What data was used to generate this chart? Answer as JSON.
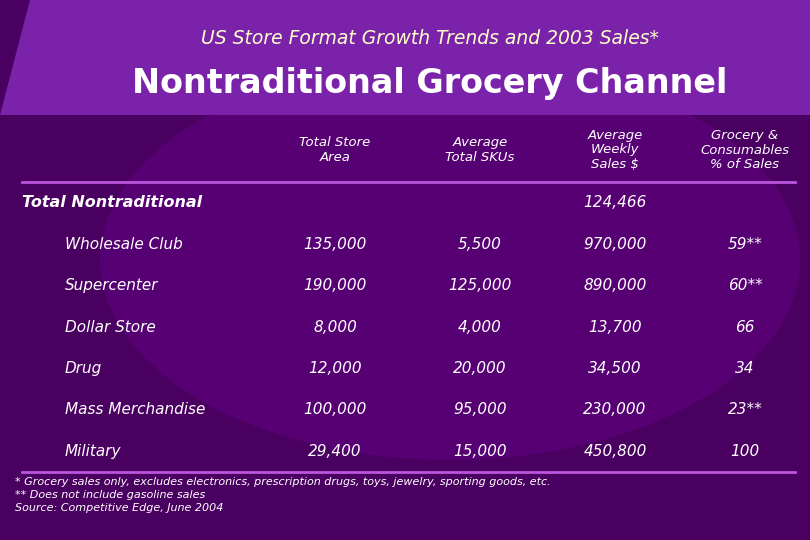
{
  "title_line1": "US Store Format Growth Trends and 2003 Sales*",
  "title_line2": "Nontraditional Grocery Channel",
  "header_bg": "#7b22aa",
  "outer_bg": "#4a0060",
  "text_color": "#ffffff",
  "yellow_color": "#ffffcc",
  "col_headers": [
    "Total Store\nArea",
    "Average\nTotal SKUs",
    "Average\nWeekly\nSales $",
    "Grocery &\nConsumables\n% of Sales"
  ],
  "row_labels": [
    "Total Nontraditional",
    "Wholesale Club",
    "Supercenter",
    "Dollar Store",
    "Drug",
    "Mass Merchandise",
    "Military"
  ],
  "row_indent": [
    false,
    true,
    true,
    true,
    true,
    true,
    true
  ],
  "table_data": [
    [
      "",
      "",
      "124,466",
      ""
    ],
    [
      "135,000",
      "5,500",
      "970,000",
      "59**"
    ],
    [
      "190,000",
      "125,000",
      "890,000",
      "60**"
    ],
    [
      "8,000",
      "4,000",
      "13,700",
      "66"
    ],
    [
      "12,000",
      "20,000",
      "34,500",
      "34"
    ],
    [
      "100,000",
      "95,000",
      "230,000",
      "23**"
    ],
    [
      "29,400",
      "15,000",
      "450,800",
      "100"
    ]
  ],
  "footnotes": [
    "* Grocery sales only, excludes electronics, prescription drugs, toys, jewelry, sporting goods, etc.",
    "** Does not include gasoline sales",
    "Source: Competitive Edge, June 2004"
  ],
  "divider_color": "#aa44cc",
  "line_color": "#bb55dd"
}
